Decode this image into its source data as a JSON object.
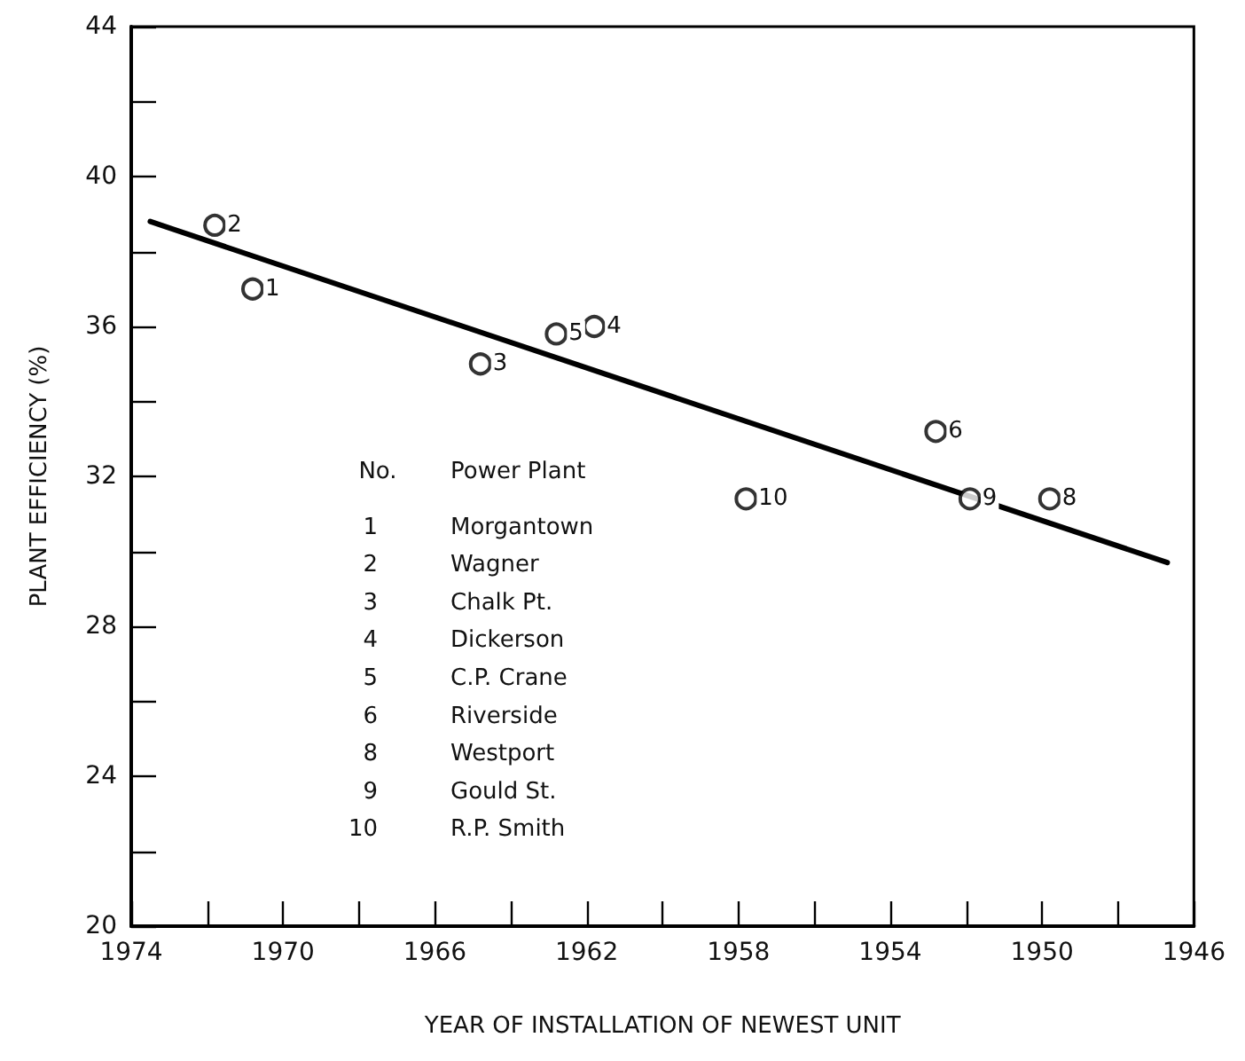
{
  "chart_data": {
    "type": "scatter",
    "xlabel": "YEAR OF INSTALLATION OF NEWEST UNIT",
    "ylabel": "PLANT EFFICIENCY (%)",
    "x": [
      1970.8,
      1971.8,
      1964.8,
      1961.8,
      1962.8,
      1952.8,
      1949.8,
      1951.9,
      1957.8
    ],
    "series": [
      {
        "color": "#000000",
        "marker": "circle",
        "values": [
          37.0,
          38.7,
          35.0,
          36.0,
          35.8,
          33.2,
          31.4,
          31.4,
          31.4
        ]
      },
      {
        "type": "line",
        "color": "#000000",
        "marker": "none",
        "line_style": "solid",
        "x": [
          1973.5,
          1946.7
        ],
        "values": [
          38.8,
          29.7
        ]
      }
    ],
    "xlim": [
      1974,
      1946
    ],
    "xticks": [
      1974,
      {
        "value": 1972,
        "label": null
      },
      1970,
      {
        "value": 1968,
        "label": null
      },
      1966,
      {
        "value": 1964,
        "label": null
      },
      1962,
      {
        "value": 1960,
        "label": null
      },
      1958,
      {
        "value": 1956,
        "label": null
      },
      1954,
      {
        "value": 1952,
        "label": null
      },
      1950,
      {
        "value": 1948,
        "label": null
      },
      1946
    ],
    "ylim": [
      20,
      44
    ],
    "yticks": [
      20,
      {
        "value": 22,
        "label": null
      },
      24,
      {
        "value": 26,
        "label": null
      },
      28,
      {
        "value": 30,
        "label": null
      },
      32,
      {
        "value": 34,
        "label": null
      },
      36,
      {
        "value": 38,
        "label": null
      },
      40,
      {
        "value": 42,
        "label": null
      },
      44
    ],
    "grid": false,
    "annotations": [
      {
        "text": "1",
        "x": 1970.8,
        "y": 37.0
      },
      {
        "text": "2",
        "x": 1971.8,
        "y": 38.7
      },
      {
        "text": "3",
        "x": 1964.8,
        "y": 35.0
      },
      {
        "text": "4",
        "x": 1961.8,
        "y": 36.0
      },
      {
        "text": "5",
        "x": 1962.8,
        "y": 35.8
      },
      {
        "text": "6",
        "x": 1952.8,
        "y": 33.2
      },
      {
        "text": "8",
        "x": 1949.8,
        "y": 31.4
      },
      {
        "text": "9",
        "x": 1951.9,
        "y": 31.4
      },
      {
        "text": "10",
        "x": 1957.8,
        "y": 31.4
      },
      "No.",
      "Power Plant",
      "1",
      "Morgantown",
      "2",
      "Wagner",
      "3",
      "Chalk Pt.",
      "4",
      "Dickerson",
      "5",
      "C.P. Crane",
      "6",
      "Riverside",
      "8",
      "Westport",
      "9",
      "Gould St.",
      "10",
      "R.P. Smith"
    ]
  }
}
